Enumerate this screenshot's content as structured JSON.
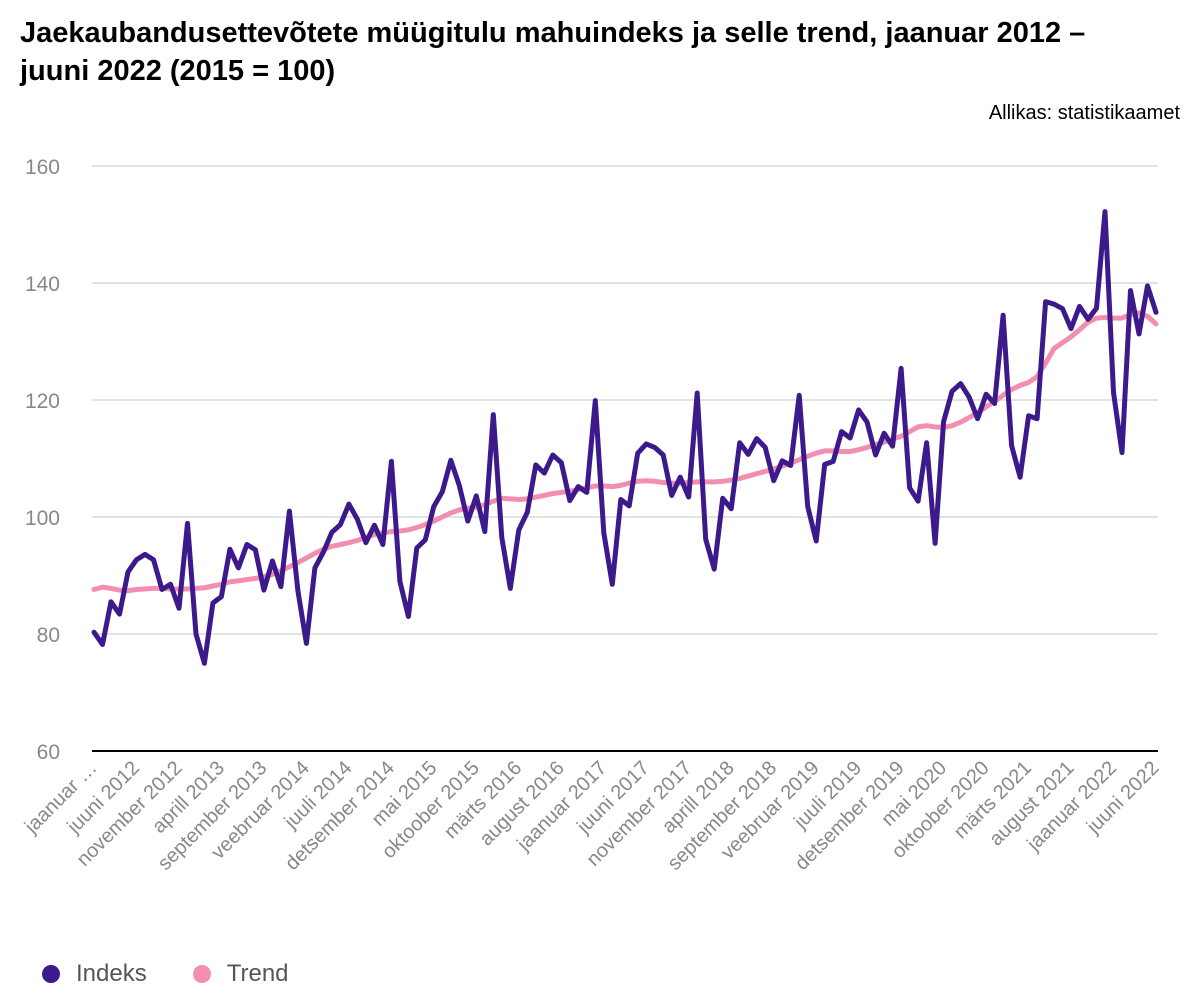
{
  "title": "Jaekaubandusettevõtete müügitulu mahuindeks ja selle trend, jaanuar 2012 – juuni 2022 (2015 = 100)",
  "source": "Allikas: statistikaamet",
  "colors": {
    "indeks": "#3d1a8c",
    "trend": "#f28fb0",
    "grid": "#d9d9d9",
    "axis": "#000000",
    "tick_text": "#888888"
  },
  "legend": [
    {
      "label": "Indeks",
      "color": "#3d1a8c"
    },
    {
      "label": "Trend",
      "color": "#f28fb0"
    }
  ],
  "chart_data": {
    "type": "line",
    "title": "Jaekaubandusettevõtete müügitulu mahuindeks ja selle trend, jaanuar 2012 – juuni 2022 (2015 = 100)",
    "xlabel": "",
    "ylabel": "",
    "ylim": [
      60,
      160
    ],
    "yticks": [
      60,
      80,
      100,
      120,
      140,
      160
    ],
    "grid": true,
    "legend_position": "bottom-left",
    "x_start": "jaanuar 2012",
    "x_end": "juuni 2022",
    "x_count": 126,
    "x_tick_labels": [
      "jaanuar …",
      "juuni 2012",
      "november 2012",
      "aprill 2013",
      "september 2013",
      "veebruar 2014",
      "juuli 2014",
      "detsember 2014",
      "mai 2015",
      "oktoober 2015",
      "märts 2016",
      "august 2016",
      "jaanuar 2017",
      "juuni 2017",
      "november 2017",
      "aprill 2018",
      "september 2018",
      "veebruar 2019",
      "juuli 2019",
      "detsember 2019",
      "mai 2020",
      "oktoober 2020",
      "märts 2021",
      "august 2021",
      "jaanuar 2022",
      "juuni 2022"
    ],
    "series": [
      {
        "name": "Indeks",
        "values": [
          80.3,
          78.2,
          85.5,
          83.4,
          90.6,
          92.7,
          93.6,
          92.7,
          87.6,
          88.5,
          84.4,
          98.9,
          80.0,
          75.0,
          85.3,
          86.4,
          94.5,
          91.3,
          95.3,
          94.4,
          87.5,
          92.5,
          88.1,
          101.0,
          87.4,
          78.4,
          91.3,
          94.0,
          97.4,
          98.7,
          102.2,
          99.6,
          95.6,
          98.6,
          95.3,
          109.5,
          89.0,
          83.0,
          94.7,
          96.1,
          101.8,
          104.3,
          109.7,
          105.4,
          99.3,
          103.6,
          97.5,
          117.5,
          96.5,
          87.8,
          97.8,
          100.8,
          108.9,
          107.5,
          110.6,
          109.3,
          102.8,
          105.2,
          104.2,
          119.9,
          97.3,
          88.5,
          103.0,
          101.9,
          110.9,
          112.5,
          111.9,
          110.6,
          103.7,
          106.8,
          103.4,
          121.2,
          96.2,
          91.1,
          103.2,
          101.4,
          112.7,
          110.7,
          113.4,
          111.9,
          106.2,
          109.6,
          108.8,
          120.8,
          101.8,
          95.9,
          109.0,
          109.5,
          114.6,
          113.5,
          118.3,
          116.2,
          110.6,
          114.3,
          112.1,
          125.4,
          105.0,
          102.7,
          112.7,
          95.5,
          116.3,
          121.5,
          122.8,
          120.5,
          116.8,
          121.0,
          119.4,
          134.5,
          112.2,
          106.8,
          117.3,
          116.8,
          136.8,
          136.4,
          135.6,
          132.2,
          136.0,
          133.8,
          135.7,
          152.2,
          121.3,
          111.0,
          138.7,
          131.3,
          139.5,
          135.0
        ]
      },
      {
        "name": "Trend",
        "values": [
          87.6,
          88.0,
          87.8,
          87.5,
          87.4,
          87.6,
          87.7,
          87.8,
          87.8,
          87.7,
          87.7,
          87.7,
          87.8,
          87.9,
          88.2,
          88.5,
          88.9,
          89.1,
          89.3,
          89.5,
          89.8,
          90.2,
          90.8,
          91.5,
          92.2,
          93.0,
          93.8,
          94.5,
          95.0,
          95.3,
          95.6,
          96.0,
          96.5,
          97.0,
          97.3,
          97.5,
          97.6,
          97.8,
          98.2,
          98.7,
          99.3,
          100.0,
          100.7,
          101.2,
          101.5,
          101.7,
          102.1,
          102.7,
          103.2,
          103.1,
          103.0,
          103.1,
          103.4,
          103.7,
          104.0,
          104.2,
          104.4,
          104.7,
          105.0,
          105.3,
          105.3,
          105.2,
          105.4,
          105.8,
          106.1,
          106.2,
          106.1,
          105.9,
          105.8,
          105.8,
          105.9,
          106.0,
          106.0,
          106.0,
          106.1,
          106.3,
          106.6,
          107.0,
          107.4,
          107.8,
          108.2,
          108.7,
          109.2,
          109.8,
          110.4,
          110.9,
          111.3,
          111.3,
          111.2,
          111.2,
          111.5,
          111.9,
          112.4,
          112.8,
          113.3,
          113.8,
          114.6,
          115.4,
          115.6,
          115.4,
          115.3,
          115.6,
          116.2,
          117.0,
          117.8,
          118.8,
          119.8,
          120.8,
          121.8,
          122.5,
          123.0,
          124.0,
          126.3,
          128.8,
          129.8,
          130.8,
          132.0,
          133.3,
          134.0,
          134.1,
          134.0,
          134.0,
          134.6,
          134.9,
          134.3,
          133.0
        ]
      }
    ]
  }
}
